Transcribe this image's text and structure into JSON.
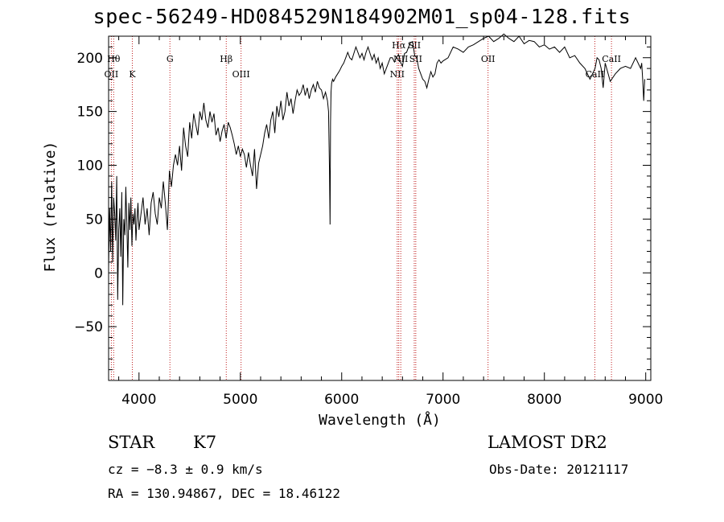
{
  "chart_data": {
    "type": "line",
    "title": "spec-56249-HD084529N184902M01_sp04-128.fits",
    "xlabel": "Wavelength (Å)",
    "ylabel": "Flux (relative)",
    "xlim": [
      3700,
      9050
    ],
    "ylim": [
      -100,
      220
    ],
    "xticks": [
      4000,
      5000,
      6000,
      7000,
      8000,
      9000
    ],
    "yticks": [
      -50,
      0,
      50,
      100,
      150,
      200
    ],
    "series": [
      {
        "x": [
          3700,
          3710,
          3720,
          3730,
          3740,
          3750,
          3760,
          3770,
          3780,
          3790,
          3800,
          3810,
          3820,
          3830,
          3840,
          3850,
          3860,
          3870,
          3880,
          3890,
          3900,
          3910,
          3920,
          3930,
          3940,
          3950,
          3960,
          3970,
          3980,
          3990,
          4000,
          4020,
          4040,
          4060,
          4080,
          4100,
          4120,
          4140,
          4160,
          4180,
          4200,
          4220,
          4240,
          4260,
          4280,
          4300,
          4320,
          4340,
          4360,
          4380,
          4400,
          4420,
          4440,
          4460,
          4480,
          4500,
          4520,
          4540,
          4560,
          4580,
          4600,
          4620,
          4640,
          4660,
          4680,
          4700,
          4720,
          4740,
          4760,
          4780,
          4800,
          4820,
          4840,
          4860,
          4880,
          4900,
          4920,
          4940,
          4960,
          4980,
          5000,
          5020,
          5040,
          5060,
          5080,
          5100,
          5120,
          5140,
          5160,
          5180,
          5200,
          5220,
          5240,
          5260,
          5280,
          5300,
          5320,
          5340,
          5360,
          5380,
          5400,
          5420,
          5440,
          5460,
          5480,
          5500,
          5520,
          5540,
          5560,
          5580,
          5600,
          5620,
          5640,
          5660,
          5680,
          5700,
          5720,
          5740,
          5760,
          5780,
          5800,
          5820,
          5840,
          5860,
          5870,
          5880,
          5885,
          5890,
          5895,
          5900,
          5910,
          5920,
          5940,
          5960,
          5980,
          6000,
          6020,
          6040,
          6060,
          6080,
          6100,
          6120,
          6140,
          6160,
          6180,
          6200,
          6220,
          6240,
          6260,
          6280,
          6300,
          6320,
          6340,
          6360,
          6380,
          6400,
          6420,
          6440,
          6460,
          6480,
          6500,
          6520,
          6540,
          6560,
          6580,
          6600,
          6620,
          6640,
          6660,
          6680,
          6700,
          6720,
          6740,
          6760,
          6780,
          6800,
          6820,
          6840,
          6860,
          6880,
          6900,
          6920,
          6940,
          6960,
          6980,
          7000,
          7050,
          7100,
          7150,
          7200,
          7250,
          7300,
          7350,
          7400,
          7450,
          7500,
          7550,
          7600,
          7650,
          7700,
          7750,
          7800,
          7850,
          7900,
          7950,
          8000,
          8050,
          8100,
          8150,
          8200,
          8250,
          8300,
          8350,
          8400,
          8450,
          8500,
          8520,
          8540,
          8560,
          8580,
          8600,
          8650,
          8700,
          8750,
          8800,
          8850,
          8900,
          8950,
          8960,
          8970,
          8980,
          8990
        ],
        "y": [
          5,
          60,
          20,
          85,
          10,
          70,
          55,
          30,
          90,
          -25,
          40,
          60,
          15,
          75,
          -30,
          50,
          35,
          80,
          45,
          5,
          65,
          40,
          70,
          25,
          55,
          45,
          60,
          30,
          50,
          65,
          40,
          55,
          70,
          45,
          60,
          35,
          65,
          75,
          55,
          45,
          70,
          60,
          85,
          65,
          40,
          95,
          80,
          100,
          110,
          100,
          118,
          95,
          135,
          118,
          108,
          140,
          125,
          148,
          138,
          128,
          150,
          142,
          158,
          142,
          135,
          150,
          140,
          148,
          128,
          135,
          122,
          132,
          138,
          125,
          140,
          135,
          128,
          120,
          110,
          118,
          108,
          115,
          110,
          98,
          112,
          100,
          90,
          115,
          78,
          102,
          110,
          118,
          130,
          138,
          125,
          142,
          150,
          130,
          155,
          145,
          160,
          142,
          150,
          168,
          155,
          162,
          148,
          160,
          170,
          165,
          168,
          175,
          165,
          172,
          162,
          170,
          175,
          168,
          178,
          172,
          170,
          162,
          168,
          160,
          150,
          95,
          45,
          140,
          168,
          176,
          180,
          178,
          182,
          185,
          188,
          192,
          195,
          200,
          205,
          200,
          198,
          204,
          210,
          205,
          200,
          204,
          198,
          205,
          210,
          204,
          198,
          203,
          195,
          200,
          190,
          195,
          185,
          190,
          195,
          200,
          200,
          196,
          200,
          203,
          196,
          192,
          204,
          205,
          210,
          214,
          215,
          202,
          200,
          190,
          185,
          180,
          178,
          172,
          180,
          187,
          182,
          185,
          195,
          198,
          195,
          197,
          200,
          210,
          208,
          205,
          210,
          212,
          215,
          218,
          220,
          215,
          218,
          222,
          218,
          215,
          220,
          213,
          216,
          215,
          210,
          212,
          208,
          210,
          205,
          210,
          200,
          202,
          195,
          190,
          180,
          190,
          200,
          198,
          190,
          172,
          195,
          178,
          185,
          190,
          192,
          190,
          200,
          190,
          195,
          180,
          160,
          180
        ]
      }
    ],
    "lines": [
      {
        "x": 3750,
        "label": "Hθ",
        "row": 1
      },
      {
        "x": 3727,
        "label": "OII",
        "row": 2
      },
      {
        "x": 3934,
        "label": "K",
        "row": 2
      },
      {
        "x": 4305,
        "label": "G",
        "row": 1
      },
      {
        "x": 4861,
        "label": "Hβ",
        "row": 1
      },
      {
        "x": 5007,
        "label": "OIII",
        "row": 2
      },
      {
        "x": 6563,
        "label": "Hα",
        "row": 0
      },
      {
        "x": 6716,
        "label": "SII",
        "row": 0
      },
      {
        "x": 6548,
        "label": "NII",
        "row": 2
      },
      {
        "x": 6583,
        "label": "NII",
        "row": 1
      },
      {
        "x": 6731,
        "label": "SII",
        "row": 1
      },
      {
        "x": 7444,
        "label": "OII",
        "row": 1
      },
      {
        "x": 8498,
        "label": "CaII",
        "row": 2
      },
      {
        "x": 8662,
        "label": "CaII",
        "row": 1
      }
    ]
  },
  "info": {
    "class": "STAR",
    "subclass": "K7",
    "survey": "LAMOST DR2",
    "cz": "cz = −8.3 ± 0.9 km/s",
    "obsdate": "Obs-Date: 20121117",
    "radec": "RA = 130.94867, DEC =  18.46122"
  }
}
